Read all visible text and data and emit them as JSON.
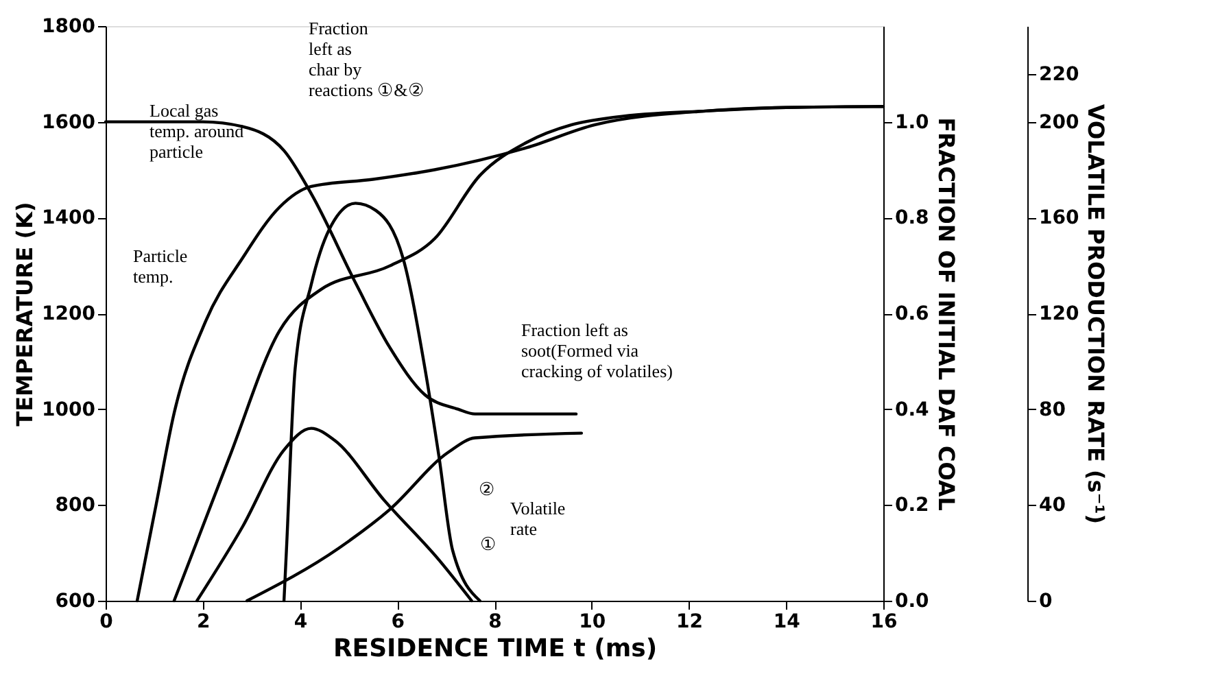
{
  "chart_data": {
    "type": "line",
    "xlabel": "RESIDENCE TIME t (ms)",
    "ylabel": "TEMPERATURE (K)",
    "y2label": "FRACTION OF INITIAL DAF COAL",
    "y3label": "VOLATILE PRODUCTION RATE (s⁻¹)",
    "xlim": [
      0,
      16
    ],
    "xticks": [
      0,
      2,
      4,
      6,
      8,
      10,
      12,
      14,
      16
    ],
    "ylim": [
      600,
      1800
    ],
    "yticks": [
      600,
      800,
      1000,
      1200,
      1400,
      1600,
      1800
    ],
    "y2lim": [
      0,
      1.2
    ],
    "y2ticks": [
      {
        "value": 0,
        "label": "0.0"
      },
      0.2,
      0.4,
      0.6,
      0.8,
      {
        "value": 1,
        "label": "1.0"
      }
    ],
    "y3lim": [
      0,
      240
    ],
    "y3ticks": [
      0,
      40,
      80,
      120,
      160,
      200,
      220
    ],
    "grid": false,
    "legend": false,
    "marker": "none",
    "line_style": "solid",
    "series": [
      {
        "color": "#000000",
        "axis": "y",
        "x": [
          0.65,
          1.04,
          1.41,
          2.06,
          2.82,
          3.58,
          4.23,
          5.5,
          6.77,
          8.66,
          10.07,
          12.4,
          14.0,
          16.0
        ],
        "values": [
          600,
          801,
          992,
          1184,
          1316,
          1422,
          1465,
          1480,
          1500,
          1546,
          1594,
          1623,
          1630,
          1632
        ]
      },
      {
        "color": "#000000",
        "axis": "y",
        "x": [
          1.41,
          2.54,
          3.58,
          4.43,
          5.84,
          6.77,
          7.7,
          8.66,
          9.59,
          10.5,
          12.4,
          14.0,
          16.0
        ],
        "values": [
          600,
          898,
          1164,
          1250,
          1299,
          1356,
          1488,
          1557,
          1594,
          1610,
          1623,
          1630,
          1632
        ]
      },
      {
        "color": "#000000",
        "axis": "y2",
        "x": [
          0,
          2.0,
          2.82,
          3.67,
          4.23,
          5.16,
          5.84,
          6.57,
          7.25,
          7.6,
          9.68
        ],
        "values": [
          1.0,
          1.0,
          0.99,
          0.94,
          0.85,
          0.66,
          0.53,
          0.43,
          0.4,
          0.39,
          0.39
        ]
      },
      {
        "color": "#000000",
        "axis": "y2",
        "x": [
          2.91,
          4.8,
          5.84,
          7.05,
          7.6,
          9.79
        ],
        "values": [
          0,
          0.11,
          0.19,
          0.31,
          0.34,
          0.35
        ]
      },
      {
        "color": "#000000",
        "axis": "y3",
        "x": [
          1.88,
          2.82,
          3.67,
          4.23,
          4.71,
          5.73,
          6.86,
          7.53
        ],
        "values": [
          0,
          31,
          63,
          72,
          67,
          42,
          17,
          0
        ]
      },
      {
        "color": "#000000",
        "axis": "y3",
        "x": [
          3.67,
          3.72,
          3.9,
          4.23,
          4.6,
          5.14,
          5.56,
          6.12,
          6.57,
          6.86,
          7.14,
          7.7
        ],
        "values": [
          0,
          21,
          97,
          132,
          155,
          166,
          163,
          143,
          97,
          60,
          21,
          0
        ]
      }
    ],
    "annotations": [
      "Fraction\nleft as\nchar by\nreactions ①&②",
      "Local gas\ntemp. around\nparticle",
      "Particle\ntemp.",
      "Fraction left as\nsoot(Formed via\ncracking of volatiles)",
      "②",
      "Volatile\nrate",
      "①"
    ]
  }
}
